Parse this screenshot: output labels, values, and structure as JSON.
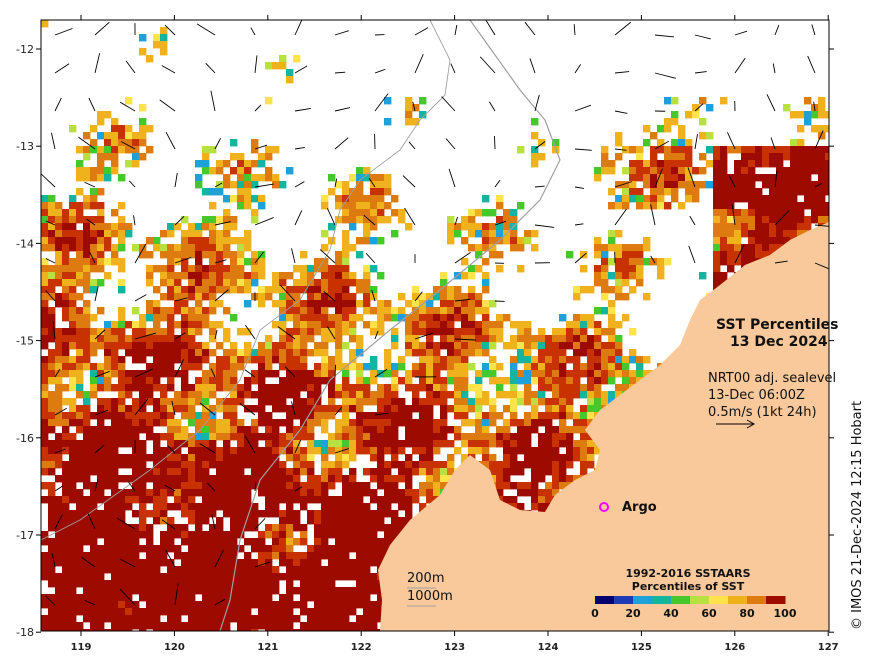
{
  "map": {
    "x_ticks": [
      "119",
      "120",
      "121",
      "122",
      "123",
      "124",
      "125",
      "126",
      "127"
    ],
    "y_ticks": [
      "-12",
      "-13",
      "-14",
      "-15",
      "-16",
      "-17",
      "-18"
    ],
    "colors": {
      "land": "#f9c99b",
      "hot": "#9c0a00",
      "high": "#c83200",
      "warm": "#dd7a10",
      "mid": "#f0b21c",
      "yellow": "#ffe34a",
      "lightgreen": "#b8e040",
      "green": "#46c82d",
      "teal": "#14b4a0",
      "cyan": "#1ea0d8",
      "blue": "#1e3cb4",
      "navy": "#00006e",
      "argo": "#ff00ff",
      "isobath": "#a0a0a0"
    }
  },
  "title": {
    "line1": "SST Percentiles",
    "line2": "13 Dec 2024"
  },
  "current_info": {
    "line1": "NRT00 adj. sealevel",
    "line2": "13-Dec 06:00Z",
    "line3": "0.5m/s (1kt 24h)"
  },
  "argo_label": "Argo",
  "isobaths": {
    "shallow": "200m",
    "deep": "1000m"
  },
  "legend": {
    "title1": "1992-2016 SSTAARS",
    "title2": "Percentiles of SST",
    "labels": [
      "0",
      "20",
      "40",
      "60",
      "80",
      "100"
    ],
    "colors": [
      "#00006e",
      "#1e3cb4",
      "#1ea0d8",
      "#14b4a0",
      "#46c82d",
      "#b8e040",
      "#ffe34a",
      "#f0b21c",
      "#dd7a10",
      "#9c0a00"
    ]
  },
  "credit": "© IMOS 21-Dec-2024 12:15 Hobart"
}
